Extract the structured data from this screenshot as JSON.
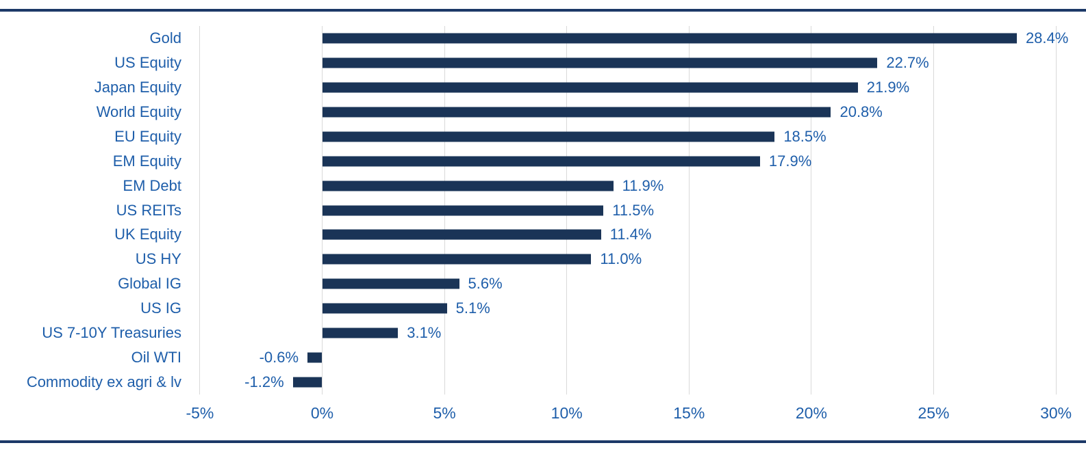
{
  "chart_data": {
    "type": "bar",
    "orientation": "horizontal",
    "title": "",
    "xlabel": "",
    "ylabel": "",
    "categories": [
      "Gold",
      "US Equity",
      "Japan Equity",
      "World Equity",
      "EU Equity",
      "EM Equity",
      "EM Debt",
      "US REITs",
      "UK Equity",
      "US HY",
      "Global IG",
      "US IG",
      "US 7-10Y Treasuries",
      "Oil WTI",
      "Commodity ex agri & lv"
    ],
    "values": [
      28.4,
      22.7,
      21.9,
      20.8,
      18.5,
      17.9,
      11.9,
      11.5,
      11.4,
      11.0,
      5.6,
      5.1,
      3.1,
      -0.6,
      -1.2
    ],
    "value_labels": [
      "28.4%",
      "22.7%",
      "21.9%",
      "20.8%",
      "18.5%",
      "17.9%",
      "11.9%",
      "11.5%",
      "11.4%",
      "11.0%",
      "5.6%",
      "5.1%",
      "3.1%",
      "-0.6%",
      "-1.2%"
    ],
    "x_tick_labels": [
      "-5%",
      "0%",
      "5%",
      "10%",
      "15%",
      "20%",
      "25%",
      "30%"
    ],
    "x_tick_values": [
      -5,
      0,
      5,
      10,
      15,
      20,
      25,
      30
    ],
    "xlim": [
      -5,
      30
    ],
    "grid": "vertical",
    "legend": "none"
  },
  "colors": {
    "bar": "#1A3457",
    "label_text": "#1E5EAA",
    "gridline": "#D9D9D9",
    "rule_line": "#1C3968",
    "background": "#FFFFFF"
  }
}
